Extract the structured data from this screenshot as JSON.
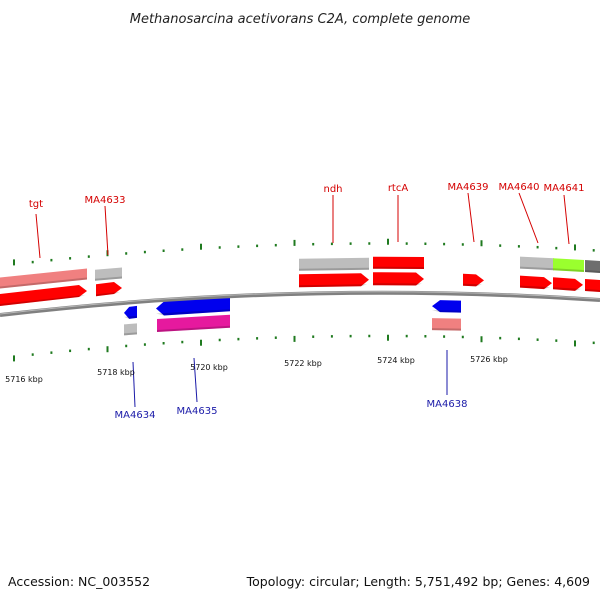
{
  "title": "Methanosarcina acetivorans C2A, complete genome",
  "footer": {
    "accession": "Accession: NC_003552",
    "summary": "Topology: circular; Length: 5,751,492 bp; Genes: 4,609"
  },
  "colors": {
    "backbone": "#808080",
    "tick": "#1f7a1f",
    "label_top": "#d40000",
    "label_bottom": "#1a1aa8",
    "red": "#ff0000",
    "salmon": "#f08080",
    "gray": "#bdbdbd",
    "blue": "#0000ee",
    "magenta": "#e6199e",
    "lime": "#9aff2e",
    "darkgray": "#6e6e6e"
  },
  "kbp_labels": [
    "5716 kbp",
    "5718 kbp",
    "5720 kbp",
    "5722 kbp",
    "5724 kbp",
    "5726 kbp"
  ],
  "gene_labels_top": [
    "tgt",
    "MA4633",
    "ndh",
    "rtcA",
    "MA4639",
    "MA4640",
    "MA4641"
  ],
  "gene_labels_bottom": [
    "MA4634",
    "MA4635",
    "MA4638"
  ]
}
